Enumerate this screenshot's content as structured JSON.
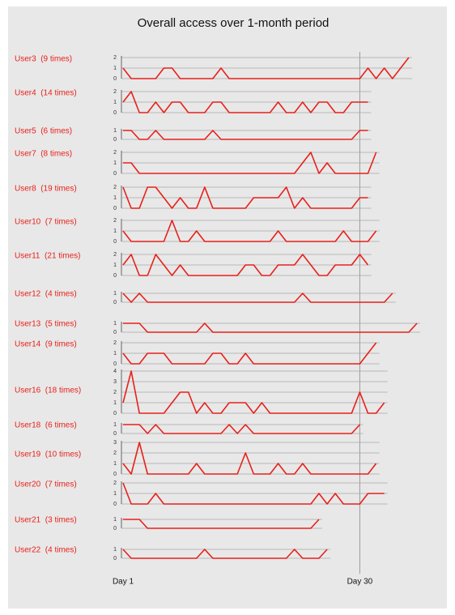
{
  "chart_data": {
    "type": "line",
    "title": "Overall access over 1-month period",
    "color": "#e8201a",
    "xlim": [
      1,
      37
    ],
    "xticks": [
      {
        "value": 1,
        "label": "Day 1"
      },
      {
        "value": 30,
        "label": "Day 30"
      }
    ],
    "panels": [
      {
        "name": "User3  (9 times)",
        "ylim": [
          0,
          2
        ],
        "yticks": [
          0,
          1,
          2
        ],
        "x": [
          1,
          2,
          3,
          4,
          5,
          6,
          7,
          8,
          9,
          10,
          11,
          12,
          13,
          14,
          15,
          16,
          17,
          18,
          19,
          20,
          21,
          22,
          23,
          24,
          25,
          26,
          27,
          28,
          29,
          30,
          31,
          32,
          33,
          34,
          35,
          36
        ],
        "values": [
          1,
          0,
          0,
          0,
          0,
          1,
          1,
          0,
          0,
          0,
          0,
          0,
          1,
          0,
          0,
          0,
          0,
          0,
          0,
          0,
          0,
          0,
          0,
          0,
          0,
          0,
          0,
          0,
          0,
          0,
          1,
          0,
          1,
          0,
          1,
          2
        ]
      },
      {
        "name": "User4  (14 times)",
        "ylim": [
          0,
          2
        ],
        "yticks": [
          0,
          1,
          2
        ],
        "x": [
          1,
          2,
          3,
          4,
          5,
          6,
          7,
          8,
          9,
          10,
          11,
          12,
          13,
          14,
          15,
          16,
          17,
          18,
          19,
          20,
          21,
          22,
          23,
          24,
          25,
          26,
          27,
          28,
          29,
          30,
          31
        ],
        "values": [
          1,
          2,
          0,
          0,
          1,
          0,
          1,
          1,
          0,
          0,
          0,
          1,
          1,
          0,
          0,
          0,
          0,
          0,
          0,
          1,
          0,
          0,
          1,
          0,
          1,
          1,
          0,
          0,
          1,
          1,
          1
        ]
      },
      {
        "name": "User5  (6 times)",
        "ylim": [
          0,
          1
        ],
        "yticks": [
          0,
          1
        ],
        "x": [
          1,
          2,
          3,
          4,
          5,
          6,
          7,
          8,
          9,
          10,
          11,
          12,
          13,
          14,
          15,
          16,
          17,
          18,
          19,
          20,
          21,
          22,
          23,
          24,
          25,
          26,
          27,
          28,
          29,
          30,
          31
        ],
        "values": [
          1,
          1,
          0,
          0,
          1,
          0,
          0,
          0,
          0,
          0,
          0,
          1,
          0,
          0,
          0,
          0,
          0,
          0,
          0,
          0,
          0,
          0,
          0,
          0,
          0,
          0,
          0,
          0,
          0,
          1,
          1
        ]
      },
      {
        "name": "User7  (8 times)",
        "ylim": [
          0,
          2
        ],
        "yticks": [
          0,
          1,
          2
        ],
        "x": [
          1,
          2,
          3,
          4,
          5,
          6,
          7,
          8,
          9,
          10,
          11,
          12,
          13,
          14,
          15,
          16,
          17,
          18,
          19,
          20,
          21,
          22,
          23,
          24,
          25,
          26,
          27,
          28,
          29,
          30,
          31,
          32
        ],
        "values": [
          1,
          1,
          0,
          0,
          0,
          0,
          0,
          0,
          0,
          0,
          0,
          0,
          0,
          0,
          0,
          0,
          0,
          0,
          0,
          0,
          0,
          0,
          1,
          2,
          0,
          1,
          0,
          0,
          0,
          0,
          0,
          2
        ]
      },
      {
        "name": "User8  (19 times)",
        "ylim": [
          0,
          2
        ],
        "yticks": [
          0,
          1,
          2
        ],
        "x": [
          1,
          2,
          3,
          4,
          5,
          6,
          7,
          8,
          9,
          10,
          11,
          12,
          13,
          14,
          15,
          16,
          17,
          18,
          19,
          20,
          21,
          22,
          23,
          24,
          25,
          26,
          27,
          28,
          29,
          30,
          31
        ],
        "values": [
          2,
          0,
          0,
          2,
          2,
          1,
          0,
          1,
          0,
          0,
          2,
          0,
          0,
          0,
          0,
          0,
          1,
          1,
          1,
          1,
          2,
          0,
          1,
          0,
          0,
          0,
          0,
          0,
          0,
          1,
          1
        ]
      },
      {
        "name": "User10  (7 times)",
        "ylim": [
          0,
          2
        ],
        "yticks": [
          0,
          1,
          2
        ],
        "x": [
          1,
          2,
          3,
          4,
          5,
          6,
          7,
          8,
          9,
          10,
          11,
          12,
          13,
          14,
          15,
          16,
          17,
          18,
          19,
          20,
          21,
          22,
          23,
          24,
          25,
          26,
          27,
          28,
          29,
          30,
          31,
          32
        ],
        "values": [
          1,
          0,
          0,
          0,
          0,
          0,
          2,
          0,
          0,
          1,
          0,
          0,
          0,
          0,
          0,
          0,
          0,
          0,
          0,
          1,
          0,
          0,
          0,
          0,
          0,
          0,
          0,
          1,
          0,
          0,
          0,
          1
        ]
      },
      {
        "name": "User11  (21 times)",
        "ylim": [
          0,
          2
        ],
        "yticks": [
          0,
          1,
          2
        ],
        "x": [
          1,
          2,
          3,
          4,
          5,
          6,
          7,
          8,
          9,
          10,
          11,
          12,
          13,
          14,
          15,
          16,
          17,
          18,
          19,
          20,
          21,
          22,
          23,
          24,
          25,
          26,
          27,
          28,
          29,
          30,
          31
        ],
        "values": [
          1,
          2,
          0,
          0,
          2,
          1,
          0,
          1,
          0,
          0,
          0,
          0,
          0,
          0,
          0,
          1,
          1,
          0,
          0,
          1,
          1,
          1,
          2,
          1,
          0,
          0,
          1,
          1,
          1,
          2,
          1
        ]
      },
      {
        "name": "User12  (4 times)",
        "ylim": [
          0,
          1
        ],
        "yticks": [
          0,
          1
        ],
        "x": [
          1,
          2,
          3,
          4,
          5,
          6,
          7,
          8,
          9,
          10,
          11,
          12,
          13,
          14,
          15,
          16,
          17,
          18,
          19,
          20,
          21,
          22,
          23,
          24,
          25,
          26,
          27,
          28,
          29,
          30,
          31,
          32,
          33,
          34
        ],
        "values": [
          1,
          0,
          1,
          0,
          0,
          0,
          0,
          0,
          0,
          0,
          0,
          0,
          0,
          0,
          0,
          0,
          0,
          0,
          0,
          0,
          0,
          0,
          1,
          0,
          0,
          0,
          0,
          0,
          0,
          0,
          0,
          0,
          0,
          1
        ]
      },
      {
        "name": "User13  (5 times)",
        "ylim": [
          0,
          1
        ],
        "yticks": [
          0,
          1
        ],
        "x": [
          1,
          2,
          3,
          4,
          5,
          6,
          7,
          8,
          9,
          10,
          11,
          12,
          13,
          14,
          15,
          16,
          17,
          18,
          19,
          20,
          21,
          22,
          23,
          24,
          25,
          26,
          27,
          28,
          29,
          30,
          31,
          32,
          33,
          34,
          35,
          36,
          37
        ],
        "values": [
          1,
          1,
          1,
          0,
          0,
          0,
          0,
          0,
          0,
          0,
          1,
          0,
          0,
          0,
          0,
          0,
          0,
          0,
          0,
          0,
          0,
          0,
          0,
          0,
          0,
          0,
          0,
          0,
          0,
          0,
          0,
          0,
          0,
          0,
          0,
          0,
          1
        ]
      },
      {
        "name": "User14  (9 times)",
        "ylim": [
          0,
          2
        ],
        "yticks": [
          0,
          1,
          2
        ],
        "x": [
          1,
          2,
          3,
          4,
          5,
          6,
          7,
          8,
          9,
          10,
          11,
          12,
          13,
          14,
          15,
          16,
          17,
          18,
          19,
          20,
          21,
          22,
          23,
          24,
          25,
          26,
          27,
          28,
          29,
          30,
          31,
          32
        ],
        "values": [
          1,
          0,
          0,
          1,
          1,
          1,
          0,
          0,
          0,
          0,
          0,
          1,
          1,
          0,
          0,
          1,
          0,
          0,
          0,
          0,
          0,
          0,
          0,
          0,
          0,
          0,
          0,
          0,
          0,
          0,
          1,
          2
        ]
      },
      {
        "name": "User16  (18 times)",
        "ylim": [
          0,
          4
        ],
        "yticks": [
          0,
          1,
          2,
          3,
          4
        ],
        "x": [
          1,
          2,
          3,
          4,
          5,
          6,
          7,
          8,
          9,
          10,
          11,
          12,
          13,
          14,
          15,
          16,
          17,
          18,
          19,
          20,
          21,
          22,
          23,
          24,
          25,
          26,
          27,
          28,
          29,
          30,
          31,
          32,
          33
        ],
        "values": [
          1,
          4,
          0,
          0,
          0,
          0,
          1,
          2,
          2,
          0,
          1,
          0,
          0,
          1,
          1,
          1,
          0,
          1,
          0,
          0,
          0,
          0,
          0,
          0,
          0,
          0,
          0,
          0,
          0,
          2,
          0,
          0,
          1
        ]
      },
      {
        "name": "User18  (6 times)",
        "ylim": [
          0,
          1
        ],
        "yticks": [
          0,
          1
        ],
        "x": [
          1,
          2,
          3,
          4,
          5,
          6,
          7,
          8,
          9,
          10,
          11,
          12,
          13,
          14,
          15,
          16,
          17,
          18,
          19,
          20,
          21,
          22,
          23,
          24,
          25,
          26,
          27,
          28,
          29,
          30
        ],
        "values": [
          1,
          1,
          1,
          0,
          1,
          0,
          0,
          0,
          0,
          0,
          0,
          0,
          0,
          1,
          0,
          1,
          0,
          0,
          0,
          0,
          0,
          0,
          0,
          0,
          0,
          0,
          0,
          0,
          0,
          1
        ]
      },
      {
        "name": "User19  (10 times)",
        "ylim": [
          0,
          3
        ],
        "yticks": [
          0,
          1,
          2,
          3
        ],
        "x": [
          1,
          2,
          3,
          4,
          5,
          6,
          7,
          8,
          9,
          10,
          11,
          12,
          13,
          14,
          15,
          16,
          17,
          18,
          19,
          20,
          21,
          22,
          23,
          24,
          25,
          26,
          27,
          28,
          29,
          30,
          31,
          32
        ],
        "values": [
          1,
          0,
          3,
          0,
          0,
          0,
          0,
          0,
          0,
          1,
          0,
          0,
          0,
          0,
          0,
          2,
          0,
          0,
          0,
          1,
          0,
          0,
          1,
          0,
          0,
          0,
          0,
          0,
          0,
          0,
          0,
          1
        ]
      },
      {
        "name": "User20  (7 times)",
        "ylim": [
          0,
          2
        ],
        "yticks": [
          0,
          1,
          2
        ],
        "x": [
          1,
          2,
          3,
          4,
          5,
          6,
          7,
          8,
          9,
          10,
          11,
          12,
          13,
          14,
          15,
          16,
          17,
          18,
          19,
          20,
          21,
          22,
          23,
          24,
          25,
          26,
          27,
          28,
          29,
          30,
          31,
          32,
          33
        ],
        "values": [
          2,
          0,
          0,
          0,
          1,
          0,
          0,
          0,
          0,
          0,
          0,
          0,
          0,
          0,
          0,
          0,
          0,
          0,
          0,
          0,
          0,
          0,
          0,
          0,
          1,
          0,
          1,
          0,
          0,
          0,
          1,
          1,
          1
        ]
      },
      {
        "name": "User21  (3 times)",
        "ylim": [
          0,
          1
        ],
        "yticks": [
          0,
          1
        ],
        "x": [
          1,
          2,
          3,
          4,
          5,
          6,
          7,
          8,
          9,
          10,
          11,
          12,
          13,
          14,
          15,
          16,
          17,
          18,
          19,
          20,
          21,
          22,
          23,
          24,
          25
        ],
        "values": [
          1,
          1,
          1,
          0,
          0,
          0,
          0,
          0,
          0,
          0,
          0,
          0,
          0,
          0,
          0,
          0,
          0,
          0,
          0,
          0,
          0,
          0,
          0,
          0,
          1
        ]
      },
      {
        "name": "User22  (4 times)",
        "ylim": [
          0,
          1
        ],
        "yticks": [
          0,
          1
        ],
        "x": [
          1,
          2,
          3,
          4,
          5,
          6,
          7,
          8,
          9,
          10,
          11,
          12,
          13,
          14,
          15,
          16,
          17,
          18,
          19,
          20,
          21,
          22,
          23,
          24,
          25,
          26
        ],
        "values": [
          1,
          0,
          0,
          0,
          0,
          0,
          0,
          0,
          0,
          0,
          1,
          0,
          0,
          0,
          0,
          0,
          0,
          0,
          0,
          0,
          0,
          1,
          0,
          0,
          0,
          1
        ]
      }
    ]
  }
}
